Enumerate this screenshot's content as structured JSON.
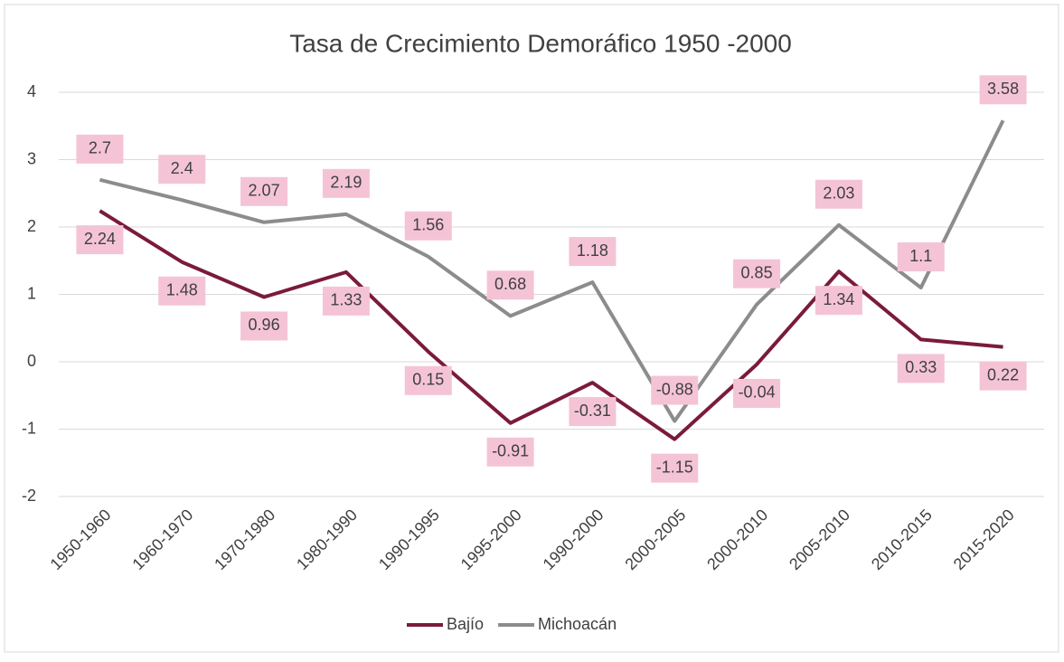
{
  "chart_data": {
    "type": "line",
    "title": "Tasa de Crecimiento Demoráfico 1950 -2000",
    "categories": [
      "1950-1960",
      "1960-1970",
      "1970-1980",
      "1980-1990",
      "1990-1995",
      "1995-2000",
      "1990-2000",
      "2000-2005",
      "2000-2010",
      "2005-2010",
      "2010-2015",
      "2015-2020"
    ],
    "series": [
      {
        "name": "Bajío",
        "color": "#7b1a3c",
        "values": [
          2.24,
          1.48,
          0.96,
          1.33,
          0.15,
          -0.91,
          -0.31,
          -1.15,
          -0.04,
          1.34,
          0.33,
          0.22
        ]
      },
      {
        "name": "Michoacán",
        "color": "#8c8c8c",
        "values": [
          2.7,
          2.4,
          2.07,
          2.19,
          1.56,
          0.68,
          1.18,
          -0.88,
          0.85,
          2.03,
          1.1,
          3.58
        ]
      }
    ],
    "ylim": [
      -2,
      4
    ],
    "yticks": [
      -2,
      -1,
      0,
      1,
      2,
      3,
      4
    ],
    "grid": true,
    "legend": "bottom"
  }
}
